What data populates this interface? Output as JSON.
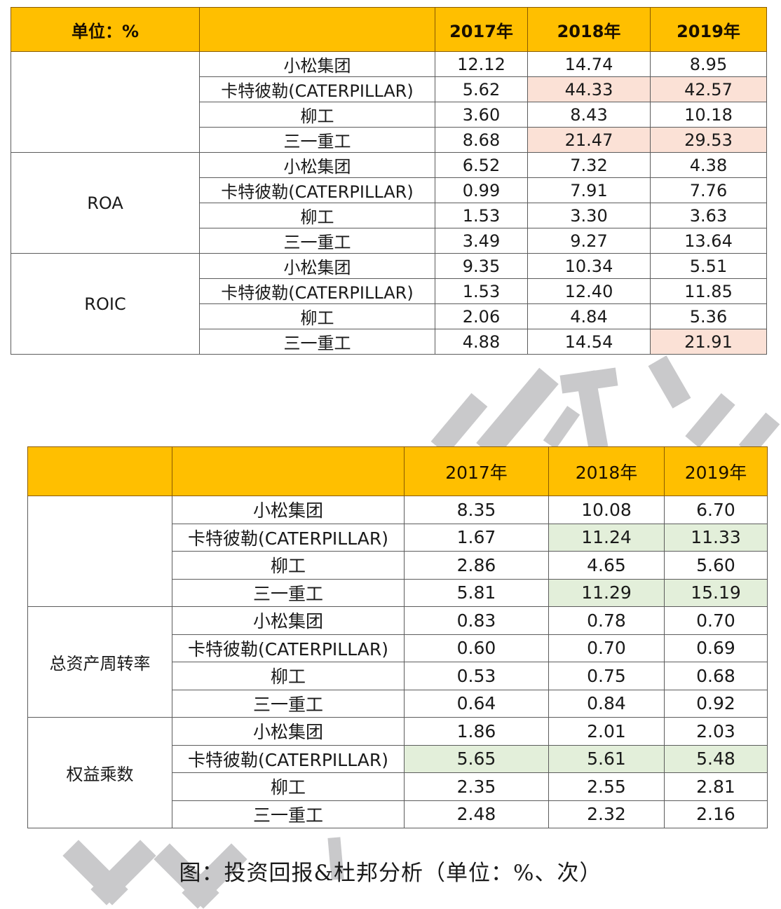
{
  "table_top": {
    "unit_label": "单位：%",
    "columns": [
      "2017年",
      "2018年",
      "2019年"
    ],
    "groups": [
      {
        "metric": "",
        "rows": [
          {
            "company": "小松集团",
            "values": [
              "12.12",
              "14.74",
              "8.95"
            ],
            "highlight": [
              false,
              false,
              false
            ]
          },
          {
            "company": "卡特彼勒(CATERPILLAR)",
            "values": [
              "5.62",
              "44.33",
              "42.57"
            ],
            "highlight": [
              false,
              true,
              true
            ]
          },
          {
            "company": "柳工",
            "values": [
              "3.60",
              "8.43",
              "10.18"
            ],
            "highlight": [
              false,
              false,
              false
            ]
          },
          {
            "company": "三一重工",
            "values": [
              "8.68",
              "21.47",
              "29.53"
            ],
            "highlight": [
              false,
              true,
              true
            ]
          }
        ]
      },
      {
        "metric": "ROA",
        "rows": [
          {
            "company": "小松集团",
            "values": [
              "6.52",
              "7.32",
              "4.38"
            ],
            "highlight": [
              false,
              false,
              false
            ]
          },
          {
            "company": "卡特彼勒(CATERPILLAR)",
            "values": [
              "0.99",
              "7.91",
              "7.76"
            ],
            "highlight": [
              false,
              false,
              false
            ]
          },
          {
            "company": "柳工",
            "values": [
              "1.53",
              "3.30",
              "3.63"
            ],
            "highlight": [
              false,
              false,
              false
            ]
          },
          {
            "company": "三一重工",
            "values": [
              "3.49",
              "9.27",
              "13.64"
            ],
            "highlight": [
              false,
              false,
              false
            ]
          }
        ]
      },
      {
        "metric": "ROIC",
        "rows": [
          {
            "company": "小松集团",
            "values": [
              "9.35",
              "10.34",
              "5.51"
            ],
            "highlight": [
              false,
              false,
              false
            ]
          },
          {
            "company": "卡特彼勒(CATERPILLAR)",
            "values": [
              "1.53",
              "12.40",
              "11.85"
            ],
            "highlight": [
              false,
              false,
              false
            ]
          },
          {
            "company": "柳工",
            "values": [
              "2.06",
              "4.84",
              "5.36"
            ],
            "highlight": [
              false,
              false,
              false
            ]
          },
          {
            "company": "三一重工",
            "values": [
              "4.88",
              "14.54",
              "21.91"
            ],
            "highlight": [
              false,
              false,
              true
            ]
          }
        ]
      }
    ],
    "highlight_color": "#fbe1d6"
  },
  "table_bottom": {
    "unit_label": "",
    "columns": [
      "2017年",
      "2018年",
      "2019年"
    ],
    "groups": [
      {
        "metric": "",
        "rows": [
          {
            "company": "小松集团",
            "values": [
              "8.35",
              "10.08",
              "6.70"
            ],
            "highlight": [
              false,
              false,
              false
            ]
          },
          {
            "company": "卡特彼勒(CATERPILLAR)",
            "values": [
              "1.67",
              "11.24",
              "11.33"
            ],
            "highlight": [
              false,
              true,
              true
            ]
          },
          {
            "company": "柳工",
            "values": [
              "2.86",
              "4.65",
              "5.60"
            ],
            "highlight": [
              false,
              false,
              false
            ]
          },
          {
            "company": "三一重工",
            "values": [
              "5.81",
              "11.29",
              "15.19"
            ],
            "highlight": [
              false,
              true,
              true
            ]
          }
        ]
      },
      {
        "metric": "总资产周转率",
        "rows": [
          {
            "company": "小松集团",
            "values": [
              "0.83",
              "0.78",
              "0.70"
            ],
            "highlight": [
              false,
              false,
              false
            ]
          },
          {
            "company": "卡特彼勒(CATERPILLAR)",
            "values": [
              "0.60",
              "0.70",
              "0.69"
            ],
            "highlight": [
              false,
              false,
              false
            ]
          },
          {
            "company": "柳工",
            "values": [
              "0.53",
              "0.75",
              "0.68"
            ],
            "highlight": [
              false,
              false,
              false
            ]
          },
          {
            "company": "三一重工",
            "values": [
              "0.64",
              "0.84",
              "0.92"
            ],
            "highlight": [
              false,
              false,
              false
            ]
          }
        ]
      },
      {
        "metric": "权益乘数",
        "rows": [
          {
            "company": "小松集团",
            "values": [
              "1.86",
              "2.01",
              "2.03"
            ],
            "highlight": [
              false,
              false,
              false
            ]
          },
          {
            "company": "卡特彼勒(CATERPILLAR)",
            "values": [
              "5.65",
              "5.61",
              "5.48"
            ],
            "highlight": [
              true,
              true,
              true
            ]
          },
          {
            "company": "柳工",
            "values": [
              "2.35",
              "2.55",
              "2.81"
            ],
            "highlight": [
              false,
              false,
              false
            ]
          },
          {
            "company": "三一重工",
            "values": [
              "2.48",
              "2.32",
              "2.16"
            ],
            "highlight": [
              false,
              false,
              false
            ]
          }
        ]
      }
    ],
    "highlight_color": "#e3efda"
  },
  "caption": "图：投资回报&杜邦分析（单位：%、次）",
  "colors": {
    "header_bg": "#ffbf00",
    "border": "#5c5c5c",
    "highlight_red": "#fbe1d6",
    "highlight_green": "#e3efda",
    "watermark": "#c9c9cb"
  }
}
